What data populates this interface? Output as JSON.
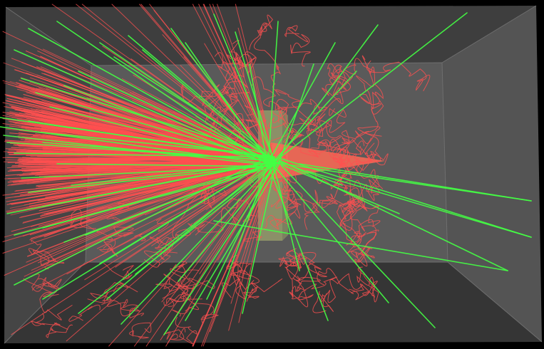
{
  "scene": {
    "background": "#000000",
    "colors": {
      "world_box_outer": "#4a4a4a",
      "world_box_back_wall": "#5a5a5a",
      "world_box_floor": "#3a3a3a",
      "world_box_ceiling": "#3e3e3e",
      "world_box_left_wall": "#454545",
      "world_box_right_wall": "#545454",
      "world_box_edge": "#6e6e6e",
      "target_slab": "#c8d27a",
      "charged_track": "#ff5050",
      "neutral_track": "#44ff44",
      "beam_core": "#ff6a55"
    },
    "track_types": [
      "charged",
      "neutral"
    ]
  }
}
